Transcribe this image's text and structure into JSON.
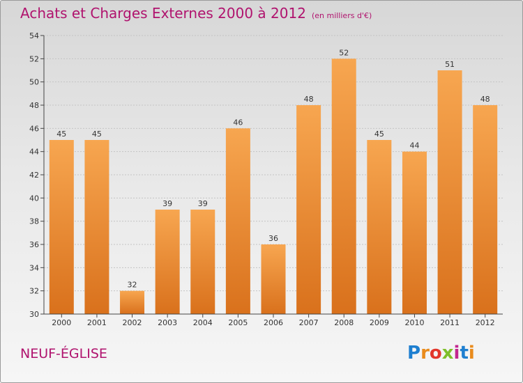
{
  "header": {
    "title": "Achats et Charges Externes 2000 à 2012",
    "unit": "(en milliers d'€)"
  },
  "footer": {
    "commune": "NEUF-ÉGLISE"
  },
  "logo": {
    "letters": [
      "P",
      "r",
      "o",
      "x",
      "i",
      "t",
      "i"
    ],
    "colors": [
      "#1e7fd0",
      "#e98b1c",
      "#e2362b",
      "#7fbf2a",
      "#c3268f",
      "#1e7fd0",
      "#e98b1c"
    ]
  },
  "colors": {
    "bar_top": "#f7a650",
    "bar_bottom": "#d9711c",
    "accent": "#b0136e"
  },
  "chart_data": {
    "type": "bar",
    "categories": [
      "2000",
      "2001",
      "2002",
      "2003",
      "2004",
      "2005",
      "2006",
      "2007",
      "2008",
      "2009",
      "2010",
      "2011",
      "2012"
    ],
    "values": [
      45,
      45,
      32,
      39,
      39,
      46,
      36,
      48,
      52,
      45,
      44,
      51,
      48
    ],
    "title": "Achats et Charges Externes 2000 à 2012",
    "ylim": [
      30,
      54
    ],
    "yticks": [
      30,
      32,
      34,
      36,
      38,
      40,
      42,
      44,
      46,
      48,
      50,
      52,
      54
    ],
    "grid": true
  }
}
